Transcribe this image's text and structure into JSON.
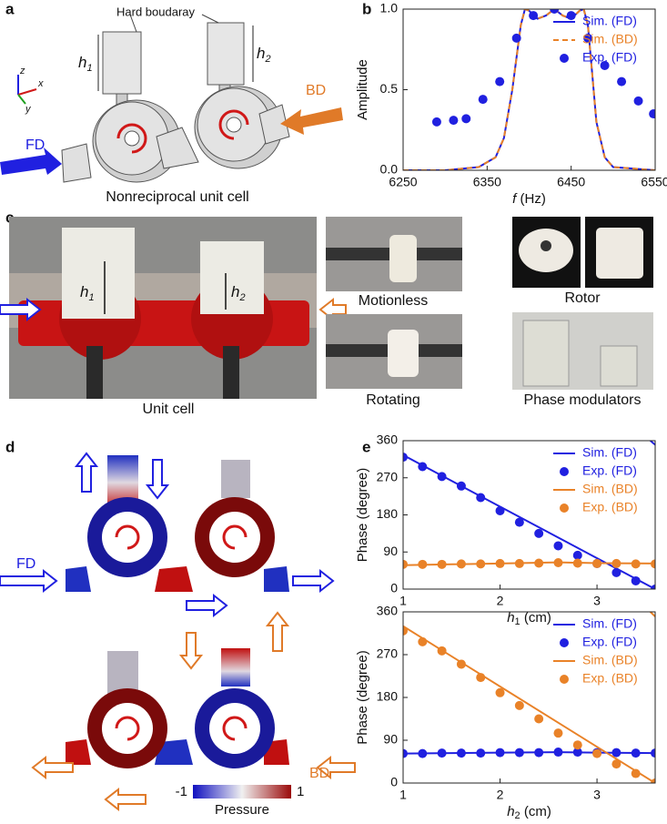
{
  "figure": {
    "panel_labels": [
      "a",
      "b",
      "c",
      "d",
      "e"
    ],
    "a": {
      "callout": "Hard boudaray",
      "h1": [
        "h",
        "1"
      ],
      "h2": [
        "h",
        "2"
      ],
      "axes": [
        "z",
        "x",
        "y"
      ],
      "fd": "FD",
      "bd": "BD",
      "caption": "Nonreciprocal unit cell"
    },
    "c": {
      "h1": [
        "h",
        "1"
      ],
      "h2": [
        "h",
        "2"
      ],
      "captions": [
        "Unit cell",
        "Motionless",
        "Rotating",
        "Rotor",
        "Phase modulators"
      ]
    },
    "d": {
      "fd": "FD",
      "bd": "BD",
      "colorbar_ticks": [
        -1,
        1
      ],
      "colorbar_label": "Pressure"
    }
  },
  "chart_data": [
    {
      "type": "line",
      "xlabel": "f",
      "xlabel_unit": " (Hz)",
      "ylabel": "Amplitude",
      "xlim": [
        6250,
        6550
      ],
      "xticks": [
        6250,
        6350,
        6450,
        6550
      ],
      "ylim": [
        0,
        1
      ],
      "yticks": [
        {
          "value": 0,
          "label": "0.0"
        },
        0.5,
        {
          "value": 1,
          "label": "1.0"
        }
      ],
      "legend": "upper right",
      "series": [
        {
          "name": "Sim. (FD)",
          "color": "#2020e0",
          "style": "solid",
          "x": [
            6250,
            6300,
            6340,
            6360,
            6370,
            6380,
            6390,
            6395,
            6400,
            6410,
            6420,
            6430,
            6440,
            6450,
            6460,
            6465,
            6470,
            6475,
            6480,
            6490,
            6500,
            6550
          ],
          "values": [
            0,
            0,
            0.02,
            0.08,
            0.2,
            0.5,
            0.9,
            1.0,
            0.99,
            0.94,
            0.96,
            1.0,
            0.96,
            0.94,
            0.99,
            1.0,
            0.9,
            0.6,
            0.3,
            0.08,
            0.02,
            0
          ]
        },
        {
          "name": "Sim. (BD)",
          "color": "#e98228",
          "style": "dashed",
          "x": [
            6250,
            6300,
            6340,
            6360,
            6370,
            6380,
            6390,
            6395,
            6400,
            6410,
            6420,
            6430,
            6440,
            6450,
            6460,
            6465,
            6470,
            6475,
            6480,
            6490,
            6500,
            6550
          ],
          "values": [
            0,
            0,
            0.02,
            0.08,
            0.2,
            0.5,
            0.9,
            1.0,
            0.99,
            0.94,
            0.96,
            1.0,
            0.96,
            0.94,
            0.99,
            1.0,
            0.9,
            0.6,
            0.3,
            0.08,
            0.02,
            0
          ]
        },
        {
          "name": "Exp. (FD)",
          "color": "#2020e0",
          "style": "dots",
          "x": [
            6290,
            6310,
            6325,
            6345,
            6365,
            6385,
            6405,
            6430,
            6450,
            6470,
            6490,
            6510,
            6530,
            6548
          ],
          "values": [
            0.3,
            0.31,
            0.32,
            0.44,
            0.55,
            0.82,
            0.96,
            1.0,
            0.96,
            0.82,
            0.65,
            0.55,
            0.43,
            0.35
          ]
        }
      ]
    },
    {
      "type": "line",
      "xlabel": "h",
      "xlabel_sub": "1",
      "xlabel_unit": " (cm)",
      "ylabel": "Phase (degree)",
      "xlim": [
        1,
        3.6
      ],
      "xticks": [
        1,
        2,
        3
      ],
      "ylim": [
        0,
        360
      ],
      "yticks": [
        0,
        90,
        180,
        270,
        360
      ],
      "legend": "upper right",
      "series": [
        {
          "name": "Sim. (FD)",
          "color": "#2020e0",
          "style": "solid",
          "x": [
            1,
            3.6,
            3.6,
            3.55,
            3.6
          ],
          "values": [
            325,
            0,
            null,
            360,
            350
          ]
        },
        {
          "name": "Exp. (FD)",
          "color": "#2020e0",
          "style": "dots",
          "x": [
            1,
            1.2,
            1.4,
            1.6,
            1.8,
            2,
            2.2,
            2.4,
            2.6,
            2.8,
            3,
            3.2,
            3.4,
            3.6
          ],
          "values": [
            320,
            297,
            273,
            250,
            222,
            190,
            162,
            135,
            105,
            82,
            62,
            40,
            20,
            0
          ]
        },
        {
          "name": "Sim. (BD)",
          "color": "#e98228",
          "style": "solid",
          "x": [
            1,
            1.5,
            2,
            2.6,
            3,
            3.6
          ],
          "values": [
            58,
            60,
            62,
            65,
            63,
            62
          ]
        },
        {
          "name": "Exp. (BD)",
          "color": "#e98228",
          "style": "dots",
          "x": [
            1,
            1.2,
            1.4,
            1.6,
            1.8,
            2,
            2.2,
            2.4,
            2.6,
            2.8,
            3,
            3.2,
            3.4,
            3.6
          ],
          "values": [
            60,
            60,
            60,
            61,
            61,
            62,
            62,
            63,
            64,
            63,
            62,
            62,
            61,
            61
          ]
        }
      ]
    },
    {
      "type": "line",
      "xlabel": "h",
      "xlabel_sub": "2",
      "xlabel_unit": " (cm)",
      "ylabel": "Phase (degree)",
      "xlim": [
        1,
        3.6
      ],
      "xticks": [
        1,
        2,
        3
      ],
      "ylim": [
        0,
        360
      ],
      "yticks": [
        0,
        90,
        180,
        270,
        360
      ],
      "legend": "upper right",
      "series": [
        {
          "name": "Sim. (FD)",
          "color": "#2020e0",
          "style": "solid",
          "x": [
            1,
            1.5,
            2,
            2.6,
            3,
            3.6
          ],
          "values": [
            62,
            63,
            64,
            65,
            64,
            63
          ]
        },
        {
          "name": "Exp. (FD)",
          "color": "#2020e0",
          "style": "dots",
          "x": [
            1,
            1.2,
            1.4,
            1.6,
            1.8,
            2,
            2.2,
            2.4,
            2.6,
            2.8,
            3,
            3.2,
            3.4,
            3.6
          ],
          "values": [
            62,
            62,
            63,
            63,
            63,
            64,
            64,
            64,
            65,
            65,
            64,
            64,
            63,
            63
          ]
        },
        {
          "name": "Sim. (BD)",
          "color": "#e98228",
          "style": "solid",
          "x": [
            1,
            3.6,
            3.6,
            3.55,
            3.6
          ],
          "values": [
            330,
            0,
            null,
            360,
            350
          ]
        },
        {
          "name": "Exp. (BD)",
          "color": "#e98228",
          "style": "dots",
          "x": [
            1,
            1.2,
            1.4,
            1.6,
            1.8,
            2,
            2.2,
            2.4,
            2.6,
            2.8,
            3,
            3.2,
            3.4,
            3.6
          ],
          "values": [
            320,
            297,
            278,
            250,
            222,
            190,
            163,
            135,
            105,
            80,
            62,
            40,
            20,
            0
          ]
        }
      ]
    }
  ]
}
